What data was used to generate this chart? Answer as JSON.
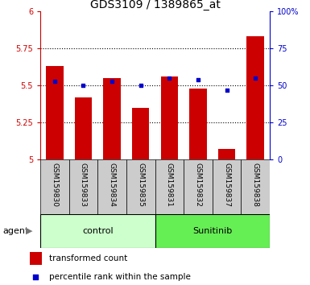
{
  "title": "GDS3109 / 1389865_at",
  "samples": [
    "GSM159830",
    "GSM159833",
    "GSM159834",
    "GSM159835",
    "GSM159831",
    "GSM159832",
    "GSM159837",
    "GSM159838"
  ],
  "red_values": [
    5.63,
    5.42,
    5.55,
    5.35,
    5.56,
    5.48,
    5.07,
    5.83
  ],
  "blue_values": [
    53,
    50,
    53,
    50,
    55,
    54,
    47,
    55
  ],
  "ylim_left": [
    5.0,
    6.0
  ],
  "ylim_right": [
    0,
    100
  ],
  "yticks_left": [
    5.0,
    5.25,
    5.5,
    5.75,
    6.0
  ],
  "yticks_right": [
    0,
    25,
    50,
    75,
    100
  ],
  "ytick_labels_left": [
    "5",
    "5.25",
    "5.5",
    "5.75",
    "6"
  ],
  "ytick_labels_right": [
    "0",
    "25",
    "50",
    "75",
    "100%"
  ],
  "control_indices": [
    0,
    1,
    2,
    3
  ],
  "sunitinib_indices": [
    4,
    5,
    6,
    7
  ],
  "control_label": "control",
  "sunitinib_label": "Sunitinib",
  "control_color": "#ccffcc",
  "sunitinib_color": "#66ee55",
  "agent_label": "agent",
  "legend_red": "transformed count",
  "legend_blue": "percentile rank within the sample",
  "bar_color": "#cc0000",
  "dot_color": "#0000cc",
  "sample_bg_color": "#cccccc",
  "title_fontsize": 10,
  "tick_fontsize": 7,
  "sample_fontsize": 6.5,
  "group_fontsize": 8,
  "legend_fontsize": 7.5
}
